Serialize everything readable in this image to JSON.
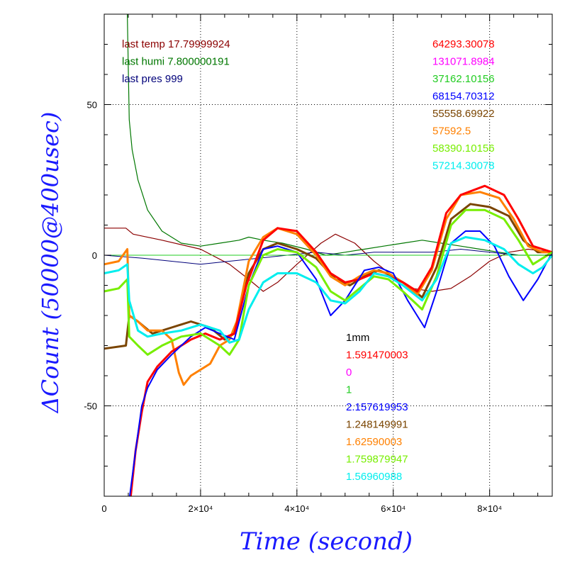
{
  "chart_data": {
    "type": "line",
    "xlabel": "Time (second)",
    "ylabel": "ΔCount (50000@400usec)",
    "xlim": [
      0,
      93000
    ],
    "ylim": [
      -80,
      80
    ],
    "x_ticks": [
      {
        "value": 0,
        "label": "0"
      },
      {
        "value": 20000,
        "label": "2×10⁴"
      },
      {
        "value": 40000,
        "label": "4×10⁴"
      },
      {
        "value": 60000,
        "label": "6×10⁴"
      },
      {
        "value": 80000,
        "label": "8×10⁴"
      }
    ],
    "y_ticks": [
      {
        "value": 50,
        "label": "50"
      },
      {
        "value": 0,
        "label": "0"
      },
      {
        "value": -50,
        "label": "-50"
      }
    ],
    "grid": "dotted",
    "env_legend": [
      {
        "text": "last temp 17.79999924",
        "color": "#8b0000"
      },
      {
        "text": "last humi 7.800000191",
        "color": "#007700"
      },
      {
        "text": "last pres 999",
        "color": "#00007a"
      }
    ],
    "count_legend": [
      {
        "text": "64293.30078",
        "color": "#ff0000"
      },
      {
        "text": "131071.8984",
        "color": "#ff00ff"
      },
      {
        "text": "37162.10156",
        "color": "#22cc22"
      },
      {
        "text": "68154.70312",
        "color": "#0000ff"
      },
      {
        "text": "55558.69922",
        "color": "#7a4400"
      },
      {
        "text": "57592.5",
        "color": "#ff8000"
      },
      {
        "text": "58390.10156",
        "color": "#77ee00"
      },
      {
        "text": "57214.30078",
        "color": "#00eeee"
      }
    ],
    "factor_legend": [
      {
        "text": "1mm",
        "color": "#000000"
      },
      {
        "text": "1.591470003",
        "color": "#ff0000"
      },
      {
        "text": "0",
        "color": "#ff00ff"
      },
      {
        "text": "1",
        "color": "#22cc22"
      },
      {
        "text": "2.157619953",
        "color": "#0000ff"
      },
      {
        "text": "1.248149991",
        "color": "#7a4400"
      },
      {
        "text": "1.62590003",
        "color": "#ff8000"
      },
      {
        "text": "1.759879947",
        "color": "#77ee00"
      },
      {
        "text": "1.56960988",
        "color": "#00eeee"
      }
    ],
    "series": [
      {
        "color": "#8b0000",
        "width": 1.2,
        "points": [
          [
            0,
            9
          ],
          [
            4500,
            9
          ],
          [
            6000,
            7
          ],
          [
            12000,
            5
          ],
          [
            20000,
            2
          ],
          [
            26000,
            -3
          ],
          [
            30000,
            -8
          ],
          [
            33000,
            -12
          ],
          [
            36000,
            -9
          ],
          [
            40000,
            -3
          ],
          [
            45000,
            4
          ],
          [
            48000,
            7
          ],
          [
            52000,
            4
          ],
          [
            56000,
            -2
          ],
          [
            60000,
            -7
          ],
          [
            64000,
            -11
          ],
          [
            68000,
            -12
          ],
          [
            72000,
            -11
          ],
          [
            76000,
            -7
          ],
          [
            80000,
            -2
          ],
          [
            84000,
            1
          ],
          [
            88000,
            2
          ],
          [
            93000,
            1
          ]
        ]
      },
      {
        "color": "#007700",
        "width": 1.2,
        "points": [
          [
            4800,
            80
          ],
          [
            5200,
            45
          ],
          [
            5800,
            35
          ],
          [
            7000,
            25
          ],
          [
            9000,
            15
          ],
          [
            12000,
            8
          ],
          [
            16000,
            4
          ],
          [
            20000,
            3
          ],
          [
            24000,
            4
          ],
          [
            28000,
            5
          ],
          [
            30000,
            6
          ],
          [
            33000,
            5
          ],
          [
            37000,
            4
          ],
          [
            42000,
            2
          ],
          [
            46000,
            0
          ],
          [
            50000,
            1
          ],
          [
            54000,
            2
          ],
          [
            58000,
            3
          ],
          [
            62000,
            4
          ],
          [
            66000,
            5
          ],
          [
            70000,
            4
          ],
          [
            74000,
            3
          ],
          [
            78000,
            2
          ],
          [
            82000,
            1
          ],
          [
            86000,
            0
          ],
          [
            90000,
            0
          ],
          [
            93000,
            0
          ]
        ]
      },
      {
        "color": "#00007a",
        "width": 1.0,
        "points": [
          [
            0,
            0
          ],
          [
            8000,
            -1
          ],
          [
            14000,
            -2
          ],
          [
            20000,
            -3
          ],
          [
            26000,
            -2
          ],
          [
            32000,
            -1
          ],
          [
            38000,
            0
          ],
          [
            44000,
            1
          ],
          [
            50000,
            0
          ],
          [
            56000,
            1
          ],
          [
            62000,
            1
          ],
          [
            68000,
            1
          ],
          [
            74000,
            2
          ],
          [
            80000,
            1
          ],
          [
            86000,
            0
          ],
          [
            93000,
            0
          ]
        ]
      },
      {
        "color": "#22cc22",
        "width": 1.0,
        "points": [
          [
            0,
            0
          ],
          [
            93000,
            0
          ]
        ]
      },
      {
        "color": "#7a4400",
        "width": 3,
        "points": [
          [
            0,
            -31
          ],
          [
            4500,
            -30
          ],
          [
            5200,
            -20
          ],
          [
            7000,
            -22
          ],
          [
            10000,
            -26
          ],
          [
            14000,
            -24
          ],
          [
            18000,
            -22
          ],
          [
            22000,
            -24
          ],
          [
            25000,
            -28
          ],
          [
            27000,
            -26
          ],
          [
            30000,
            -6
          ],
          [
            33000,
            2
          ],
          [
            36000,
            4
          ],
          [
            40000,
            2
          ],
          [
            44000,
            -1
          ],
          [
            48000,
            -8
          ],
          [
            51000,
            -10
          ],
          [
            54000,
            -7
          ],
          [
            57000,
            -5
          ],
          [
            60000,
            -7
          ],
          [
            63000,
            -10
          ],
          [
            66000,
            -14
          ],
          [
            69000,
            -4
          ],
          [
            72000,
            12
          ],
          [
            76000,
            17
          ],
          [
            80000,
            16
          ],
          [
            84000,
            13
          ],
          [
            87000,
            5
          ],
          [
            90000,
            1
          ],
          [
            93000,
            1
          ]
        ]
      },
      {
        "color": "#ff8000",
        "width": 3,
        "points": [
          [
            0,
            -3
          ],
          [
            3000,
            -2
          ],
          [
            4800,
            2
          ],
          [
            5200,
            -20
          ],
          [
            7000,
            -22
          ],
          [
            9000,
            -25
          ],
          [
            12000,
            -25
          ],
          [
            14000,
            -28
          ],
          [
            15500,
            -39
          ],
          [
            16500,
            -43
          ],
          [
            18000,
            -40
          ],
          [
            20000,
            -38
          ],
          [
            22000,
            -36
          ],
          [
            24000,
            -30
          ],
          [
            26000,
            -28
          ],
          [
            27500,
            -22
          ],
          [
            30000,
            -2
          ],
          [
            33000,
            6
          ],
          [
            36000,
            9
          ],
          [
            40000,
            7
          ],
          [
            44000,
            0
          ],
          [
            47000,
            -7
          ],
          [
            50000,
            -10
          ],
          [
            53000,
            -7
          ],
          [
            56000,
            -5
          ],
          [
            59000,
            -6
          ],
          [
            62000,
            -9
          ],
          [
            65000,
            -13
          ],
          [
            68000,
            -5
          ],
          [
            71000,
            12
          ],
          [
            74000,
            20
          ],
          [
            78000,
            21
          ],
          [
            82000,
            19
          ],
          [
            85000,
            12
          ],
          [
            88000,
            3
          ],
          [
            91000,
            1
          ],
          [
            93000,
            1
          ]
        ]
      },
      {
        "color": "#ff0000",
        "width": 3,
        "points": [
          [
            5500,
            -80
          ],
          [
            6500,
            -65
          ],
          [
            7800,
            -52
          ],
          [
            9000,
            -42
          ],
          [
            11000,
            -37
          ],
          [
            14000,
            -32
          ],
          [
            18000,
            -28
          ],
          [
            21000,
            -26
          ],
          [
            24000,
            -28
          ],
          [
            27000,
            -26
          ],
          [
            29500,
            -10
          ],
          [
            33000,
            5
          ],
          [
            36000,
            9
          ],
          [
            40000,
            8
          ],
          [
            44000,
            1
          ],
          [
            47000,
            -6
          ],
          [
            50000,
            -9
          ],
          [
            53000,
            -8
          ],
          [
            56000,
            -6
          ],
          [
            59000,
            -7
          ],
          [
            62000,
            -9
          ],
          [
            65000,
            -12
          ],
          [
            68000,
            -4
          ],
          [
            71000,
            14
          ],
          [
            74000,
            20
          ],
          [
            79000,
            23
          ],
          [
            83000,
            20
          ],
          [
            86000,
            12
          ],
          [
            89000,
            3
          ],
          [
            93000,
            1
          ]
        ]
      },
      {
        "color": "#0000ff",
        "width": 2,
        "points": [
          [
            5300,
            -80
          ],
          [
            6500,
            -65
          ],
          [
            7800,
            -50
          ],
          [
            9000,
            -44
          ],
          [
            11000,
            -38
          ],
          [
            14000,
            -33
          ],
          [
            18000,
            -27
          ],
          [
            21000,
            -24
          ],
          [
            24000,
            -26
          ],
          [
            27000,
            -28
          ],
          [
            30000,
            -10
          ],
          [
            33000,
            2
          ],
          [
            36000,
            3
          ],
          [
            40000,
            1
          ],
          [
            44000,
            -8
          ],
          [
            47000,
            -20
          ],
          [
            50000,
            -15
          ],
          [
            54000,
            -5
          ],
          [
            57000,
            -4
          ],
          [
            60000,
            -6
          ],
          [
            63000,
            -15
          ],
          [
            66500,
            -24
          ],
          [
            69000,
            -12
          ],
          [
            72000,
            4
          ],
          [
            75000,
            8
          ],
          [
            78000,
            8
          ],
          [
            81000,
            3
          ],
          [
            84000,
            -7
          ],
          [
            87000,
            -15
          ],
          [
            90000,
            -8
          ],
          [
            93000,
            1
          ]
        ]
      },
      {
        "color": "#77ee00",
        "width": 3,
        "points": [
          [
            0,
            -12
          ],
          [
            3000,
            -11
          ],
          [
            4800,
            -8
          ],
          [
            5200,
            -27
          ],
          [
            7000,
            -30
          ],
          [
            9000,
            -33
          ],
          [
            12000,
            -30
          ],
          [
            16000,
            -27
          ],
          [
            20000,
            -26
          ],
          [
            24000,
            -30
          ],
          [
            26000,
            -33
          ],
          [
            28000,
            -28
          ],
          [
            30000,
            -10
          ],
          [
            33000,
            0
          ],
          [
            36000,
            2
          ],
          [
            40000,
            1
          ],
          [
            44000,
            -4
          ],
          [
            47000,
            -12
          ],
          [
            50000,
            -15
          ],
          [
            53000,
            -11
          ],
          [
            56000,
            -7
          ],
          [
            59000,
            -8
          ],
          [
            62000,
            -12
          ],
          [
            66000,
            -18
          ],
          [
            69000,
            -7
          ],
          [
            72000,
            10
          ],
          [
            75000,
            15
          ],
          [
            79000,
            15
          ],
          [
            83000,
            12
          ],
          [
            86000,
            5
          ],
          [
            89000,
            -3
          ],
          [
            91000,
            -1
          ],
          [
            93000,
            1
          ]
        ]
      },
      {
        "color": "#00eeee",
        "width": 3,
        "points": [
          [
            0,
            -6
          ],
          [
            3000,
            -5
          ],
          [
            4800,
            -3
          ],
          [
            5200,
            -15
          ],
          [
            7000,
            -25
          ],
          [
            9000,
            -27
          ],
          [
            12000,
            -26
          ],
          [
            16000,
            -25
          ],
          [
            20000,
            -23
          ],
          [
            24000,
            -25
          ],
          [
            26000,
            -29
          ],
          [
            28000,
            -28
          ],
          [
            30000,
            -18
          ],
          [
            33000,
            -9
          ],
          [
            36000,
            -6
          ],
          [
            40000,
            -6
          ],
          [
            44000,
            -9
          ],
          [
            47000,
            -15
          ],
          [
            50000,
            -16
          ],
          [
            53000,
            -12
          ],
          [
            56000,
            -6
          ],
          [
            59000,
            -7
          ],
          [
            62000,
            -10
          ],
          [
            66000,
            -15
          ],
          [
            69000,
            -8
          ],
          [
            72000,
            4
          ],
          [
            75000,
            6
          ],
          [
            79000,
            5
          ],
          [
            83000,
            2
          ],
          [
            86000,
            -3
          ],
          [
            89000,
            -6
          ],
          [
            91000,
            -4
          ],
          [
            93000,
            0
          ]
        ]
      }
    ]
  }
}
